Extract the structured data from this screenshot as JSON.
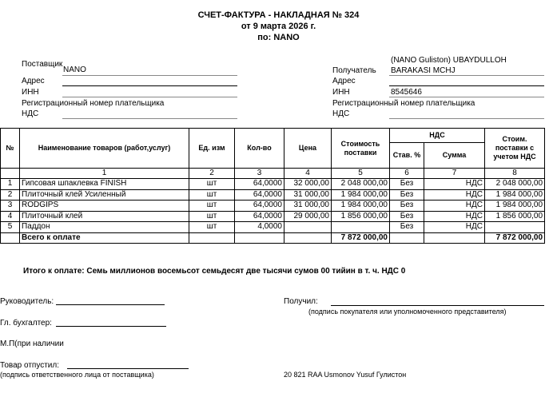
{
  "header": {
    "title": "СЧЕТ-ФАКТУРА - НАКЛАДНАЯ № 324",
    "date": "от 9 марта 2026 г.",
    "by": "по: NANO"
  },
  "supplier": {
    "label": "Поставщик",
    "value": "NANO",
    "address_label": "Адрес",
    "inn_label": "ИНН",
    "reg_label": "Регистрационный номер плательщика",
    "vat_label": "НДС"
  },
  "recipient": {
    "label": "Получатель",
    "value_line1": "(NANO Guliston) UBAYDULLOH",
    "value_line2": "BARAKASI MCHJ",
    "address_label": "Адрес",
    "inn_label": "ИНН",
    "inn": "8545646",
    "reg_label": "Регистрационный номер плательщика",
    "vat_label": "НДС"
  },
  "table": {
    "headers": {
      "no": "№",
      "name": "Наименование товаров (работ,услуг)",
      "unit": "Ед. изм",
      "qty": "Кол-во",
      "price": "Цена",
      "cost": "Стоимость поставки",
      "vat": "НДС",
      "rate": " Став. %",
      "sum": "Сумма",
      "total": "Стоим. поставки с учетом НДС"
    },
    "col_numbers": [
      "1",
      "2",
      "3",
      "4",
      "5",
      "6",
      "7",
      "8"
    ],
    "rows": [
      {
        "no": "1",
        "name": "Гипсовая шпаклевка FINISH",
        "unit": "шт",
        "qty": "64,0000",
        "price": "32 000,00",
        "cost": "2 048 000,00",
        "rate": "Без",
        "sum": "НДС",
        "total": "2 048 000,00"
      },
      {
        "no": "2",
        "name": "Плиточный клей Усиленный",
        "unit": "шт",
        "qty": "64,0000",
        "price": "31 000,00",
        "cost": "1 984 000,00",
        "rate": "Без",
        "sum": "НДС",
        "total": "1 984 000,00"
      },
      {
        "no": "3",
        "name": "RODGIPS",
        "unit": "шт",
        "qty": "64,0000",
        "price": "31 000,00",
        "cost": "1 984 000,00",
        "rate": "Без",
        "sum": "НДС",
        "total": "1 984 000,00"
      },
      {
        "no": "4",
        "name": "Плиточный клей",
        "unit": "шт",
        "qty": "64,0000",
        "price": "29 000,00",
        "cost": "1 856 000,00",
        "rate": "Без",
        "sum": "НДС",
        "total": "1 856 000,00"
      },
      {
        "no": "5",
        "name": "Паддон",
        "unit": "шт",
        "qty": "4,0000",
        "price": "",
        "cost": "",
        "rate": "Без",
        "sum": "НДС",
        "total": ""
      }
    ],
    "total_row": {
      "label": "Всего к оплате",
      "cost": "7 872 000,00",
      "total": "7 872 000,00"
    }
  },
  "summary": "Итого к оплате: Семь миллионов восемьсот семьдесят две тысячи сумов 00 тийин  в т. ч. НДС 0",
  "signatures": {
    "head": "Руководитель:",
    "accountant": "Гл. бухгалтер:",
    "stamp": "М.П(при наличии",
    "released": "Товар  отпустил:",
    "released_note": "(подпись ответственного лица от поставщика)",
    "received": "Получил:",
    "received_note": "(подпись покупателя или уполномоченного представителя)",
    "footer_note": "20 821 RAA Usmonov Yusuf Гулистон"
  }
}
